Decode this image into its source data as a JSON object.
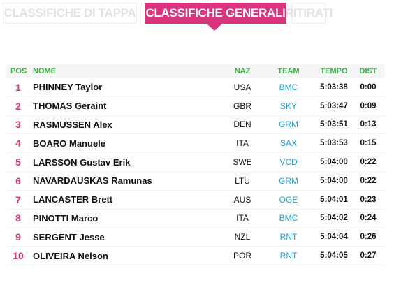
{
  "tabs": [
    {
      "label": "CLASSIFICHE DI TAPPA",
      "active": false
    },
    {
      "label": "CLASSIFICHE GENERALI",
      "active": true
    },
    {
      "label": "RITIRATI",
      "active": false
    }
  ],
  "colors": {
    "accent": "#d9357f",
    "header_text": "#3fae49",
    "team_link": "#1fa0d4"
  },
  "table": {
    "headers": {
      "pos": "POS",
      "name": "NOME",
      "naz": "NAZ",
      "team": "TEAM",
      "tempo": "TEMPO",
      "dist": "DIST"
    },
    "rows": [
      {
        "pos": "1",
        "name": "PHINNEY Taylor",
        "naz": "USA",
        "team": "BMC",
        "tempo": "5:03:38",
        "dist": "0:00"
      },
      {
        "pos": "2",
        "name": "THOMAS Geraint",
        "naz": "GBR",
        "team": "SKY",
        "tempo": "5:03:47",
        "dist": "0:09"
      },
      {
        "pos": "3",
        "name": "RASMUSSEN Alex",
        "naz": "DEN",
        "team": "GRM",
        "tempo": "5:03:51",
        "dist": "0:13"
      },
      {
        "pos": "4",
        "name": "BOARO Manuele",
        "naz": "ITA",
        "team": "SAX",
        "tempo": "5:03:53",
        "dist": "0:15"
      },
      {
        "pos": "5",
        "name": "LARSSON Gustav Erik",
        "naz": "SWE",
        "team": "VCD",
        "tempo": "5:04:00",
        "dist": "0:22"
      },
      {
        "pos": "6",
        "name": "NAVARDAUSKAS Ramunas",
        "naz": "LTU",
        "team": "GRM",
        "tempo": "5:04:00",
        "dist": "0:22"
      },
      {
        "pos": "7",
        "name": "LANCASTER Brett",
        "naz": "AUS",
        "team": "OGE",
        "tempo": "5:04:01",
        "dist": "0:23"
      },
      {
        "pos": "8",
        "name": "PINOTTI Marco",
        "naz": "ITA",
        "team": "BMC",
        "tempo": "5:04:02",
        "dist": "0:24"
      },
      {
        "pos": "9",
        "name": "SERGENT Jesse",
        "naz": "NZL",
        "team": "RNT",
        "tempo": "5:04:04",
        "dist": "0:26"
      },
      {
        "pos": "10",
        "name": "OLIVEIRA Nelson",
        "naz": "POR",
        "team": "RNT",
        "tempo": "5:04:05",
        "dist": "0:27"
      }
    ]
  }
}
